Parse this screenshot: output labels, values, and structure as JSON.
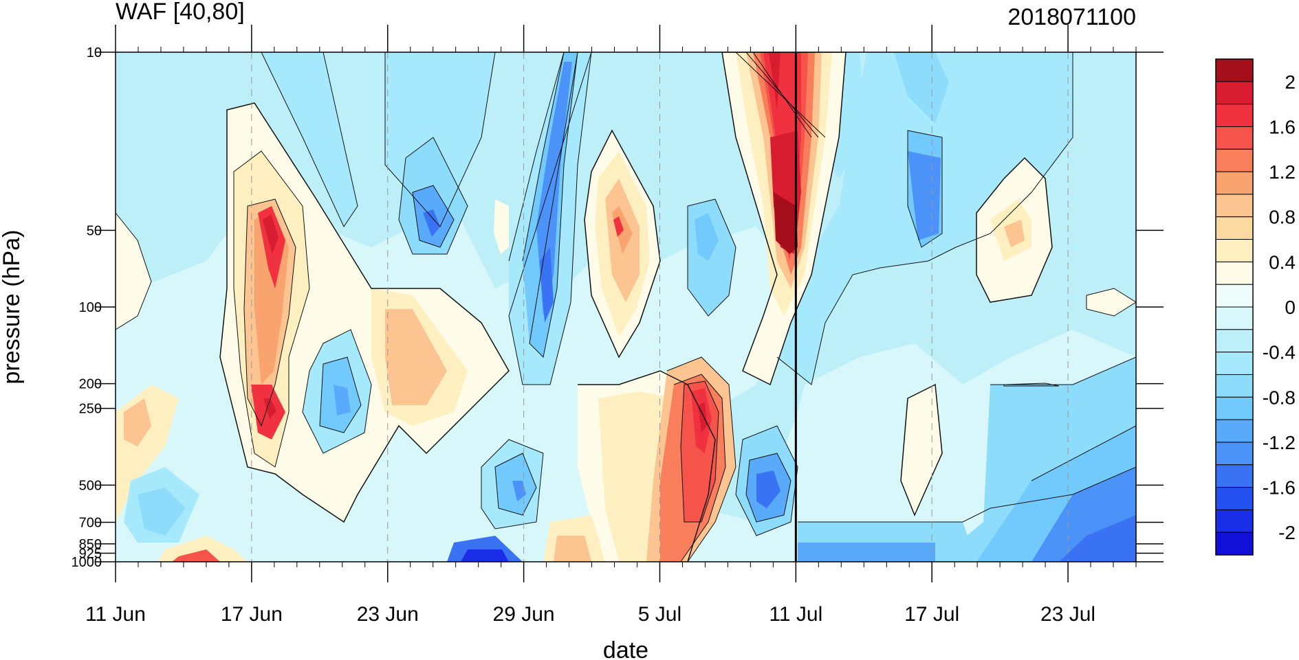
{
  "chart_data": {
    "type": "heatmap",
    "title_left": "WAF [40,80]",
    "title_right": "2018071100",
    "xlabel": "date",
    "ylabel": "pressure (hPa)",
    "x_tick_labels": [
      "11 Jun",
      "17 Jun",
      "23 Jun",
      "29 Jun",
      "5 Jul",
      "11 Jul",
      "17 Jul",
      "23 Jul"
    ],
    "x_range": [
      "2018-06-11",
      "2018-07-26"
    ],
    "y_scale": "log",
    "y_range": [
      1000,
      10
    ],
    "y_tick_labels": [
      "10",
      "50",
      "100",
      "200",
      "250",
      "500",
      "700",
      "850",
      "925",
      "1000"
    ],
    "vertical_line_date": "2018-07-11",
    "grid": "dashed vertical lines at labeled dates",
    "colorbar": {
      "levels": [
        -2.2,
        -2.0,
        -1.8,
        -1.6,
        -1.4,
        -1.2,
        -1.0,
        -0.8,
        -0.6,
        -0.4,
        -0.2,
        0,
        0.2,
        0.4,
        0.6,
        0.8,
        1.0,
        1.2,
        1.4,
        1.6,
        1.8,
        2.0,
        2.2
      ],
      "tick_labels": [
        "2",
        "1.6",
        "1.2",
        "0.8",
        "0.4",
        "0",
        "-0.4",
        "-0.8",
        "-1.2",
        "-1.6",
        "-2"
      ],
      "colors": [
        "#1010d8",
        "#1a2ee8",
        "#2550f0",
        "#3a72f4",
        "#4b93f8",
        "#5aaafc",
        "#72cafc",
        "#8ddcfc",
        "#a6e8fc",
        "#bdeff8",
        "#d8f7fa",
        "#eefcfb",
        "#fefbe8",
        "#fdefc0",
        "#fcd9a0",
        "#fbc490",
        "#f9a46e",
        "#f87e5c",
        "#f6534a",
        "#f03240",
        "#d81d30",
        "#a50f1c"
      ]
    }
  }
}
